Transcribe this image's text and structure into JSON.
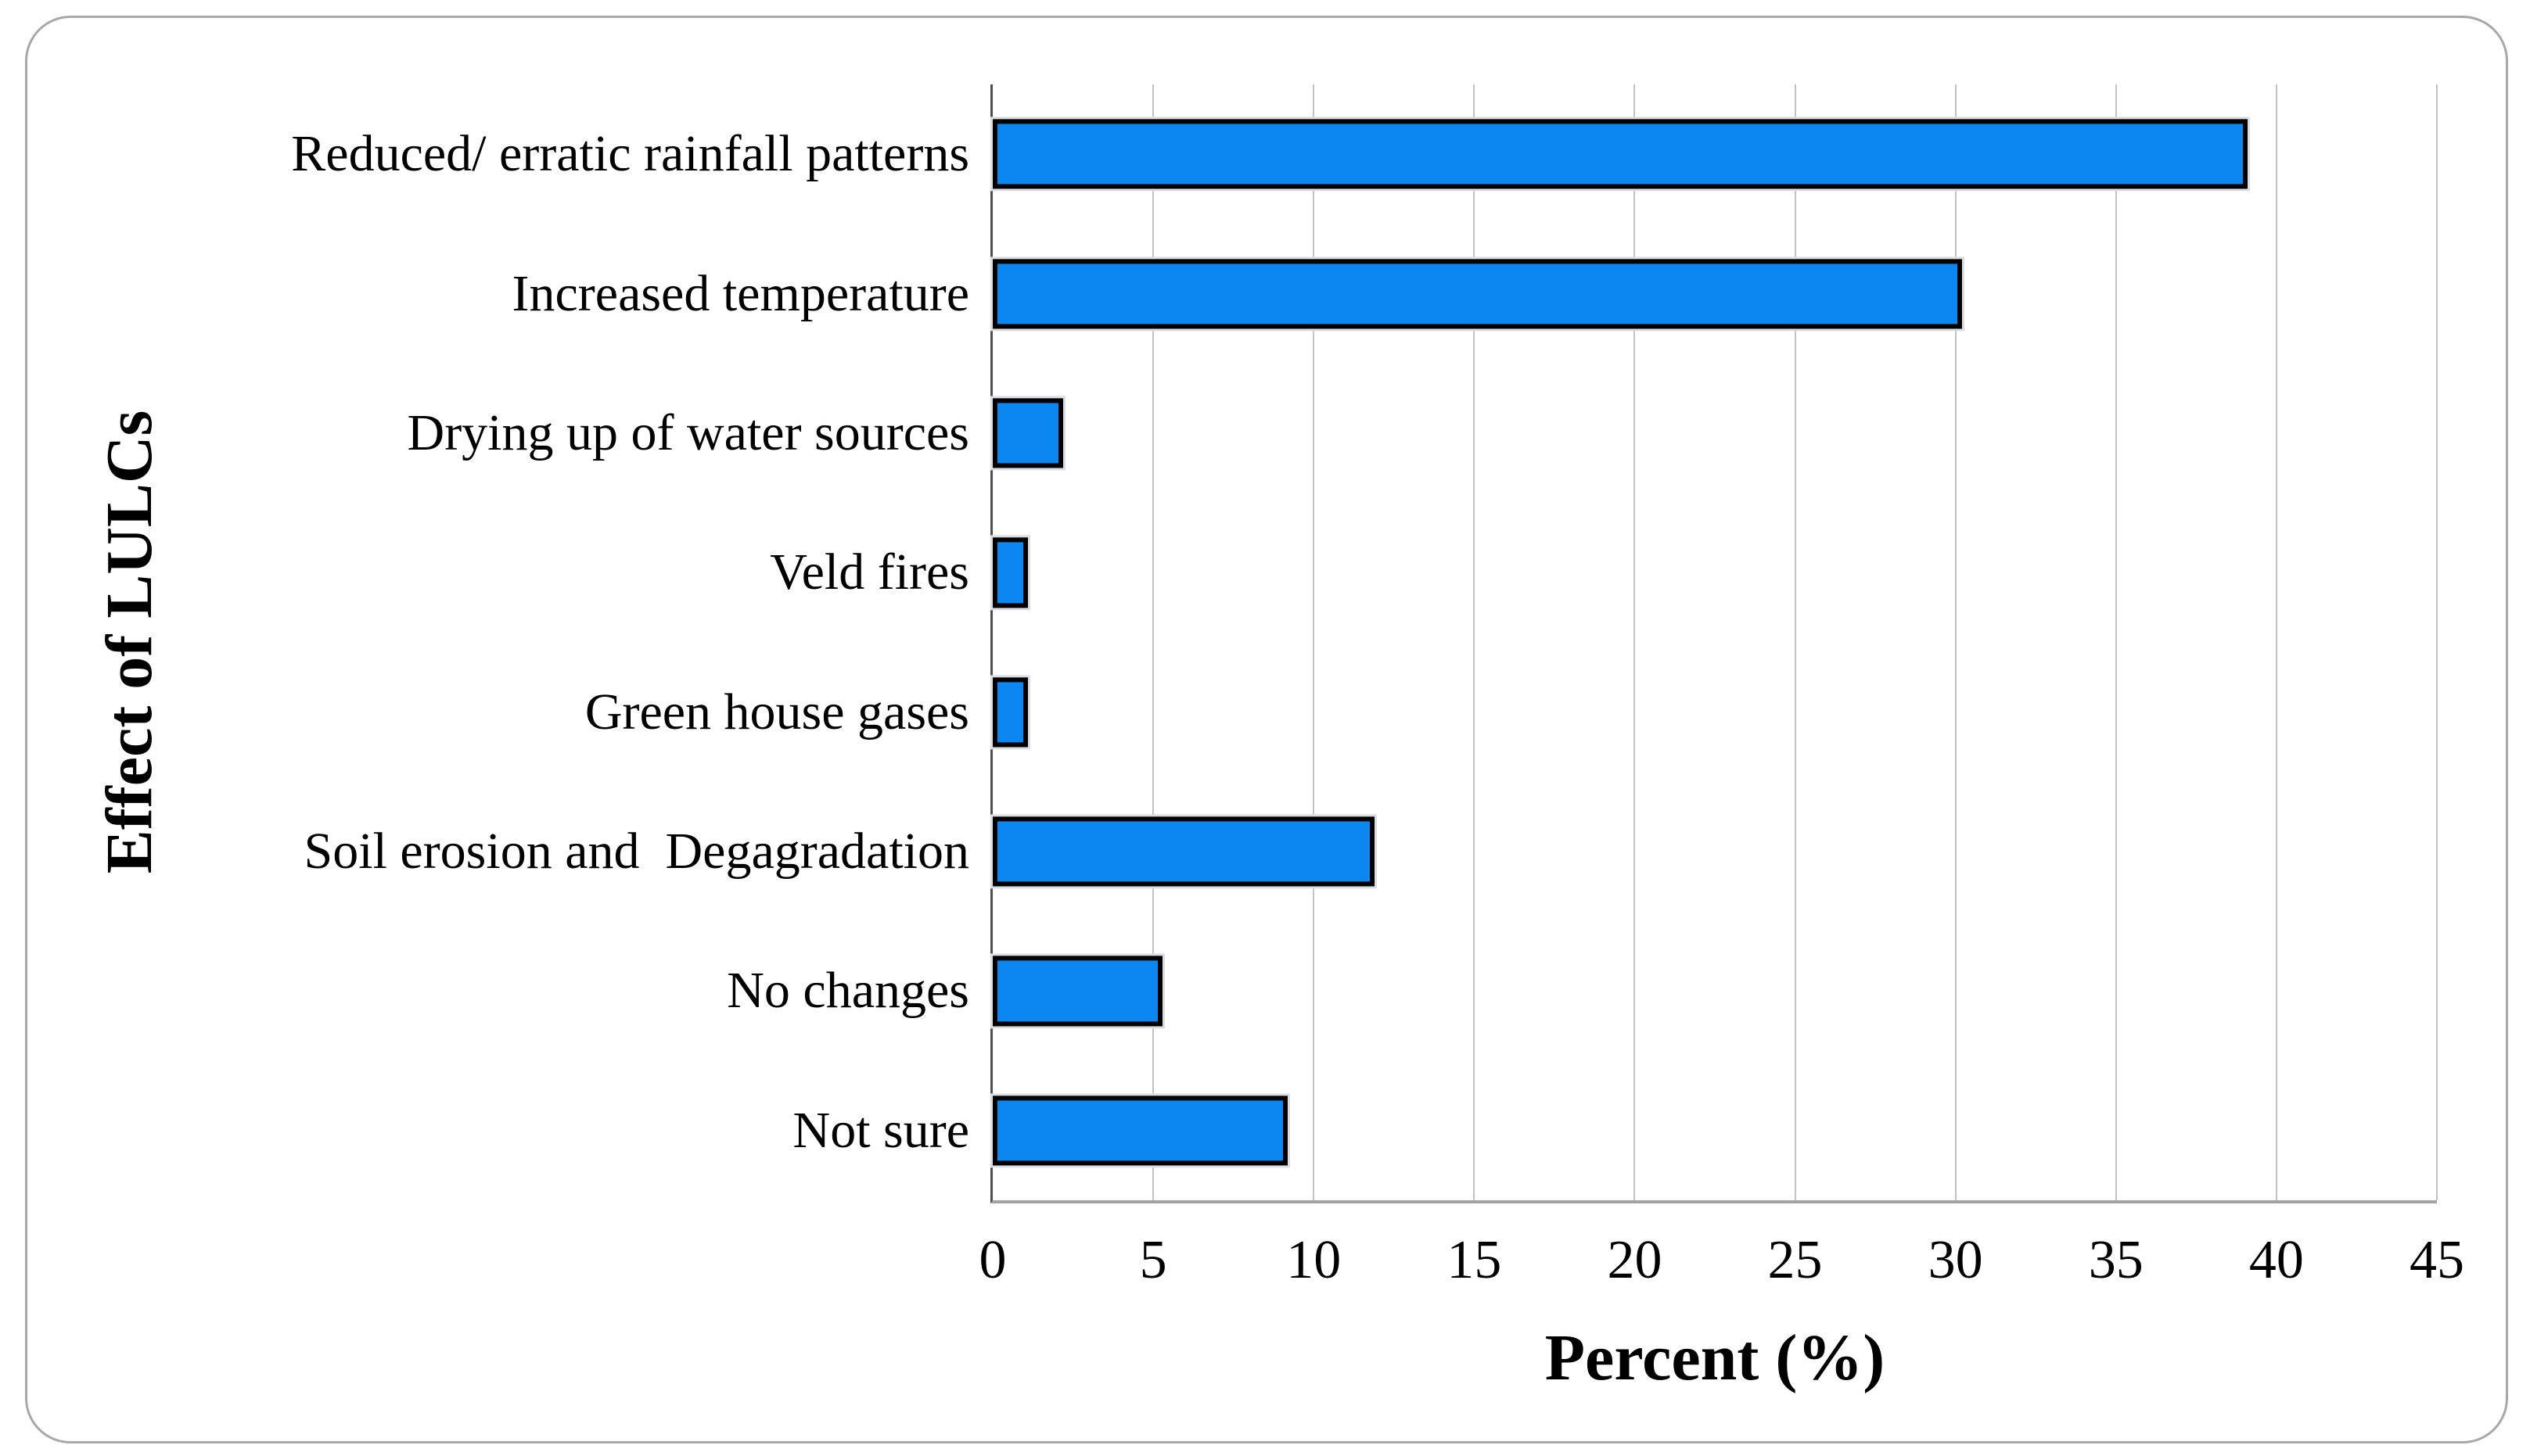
{
  "figure": {
    "background": "#ffffff",
    "frame_border_color": "#a8a8a8",
    "gridline_color": "#c2c2c2",
    "x_axis_line_color": "#a2a2a2",
    "y_axis_line_color": "#4f4f4f"
  },
  "chart_data": {
    "type": "bar",
    "orientation": "horizontal",
    "title": "",
    "xlabel": "Percent (%)",
    "ylabel": "Effect of LULCs",
    "categories": [
      "Reduced/ erratic rainfall patterns",
      "Increased temperature",
      "Drying up of water sources",
      "Veld fires",
      "Green house gases",
      "Soil erosion and  Degagradation",
      "No changes",
      "Not sure"
    ],
    "values": [
      39.1,
      30.2,
      2.2,
      1.1,
      1.1,
      11.9,
      5.3,
      9.2
    ],
    "xlim": [
      0,
      45
    ],
    "xticks": [
      0,
      5,
      10,
      15,
      20,
      25,
      30,
      35,
      40,
      45
    ],
    "grid": "vertical-only",
    "legend": null,
    "bar_color": "#0b87f2",
    "bar_border_color": "#000000"
  }
}
